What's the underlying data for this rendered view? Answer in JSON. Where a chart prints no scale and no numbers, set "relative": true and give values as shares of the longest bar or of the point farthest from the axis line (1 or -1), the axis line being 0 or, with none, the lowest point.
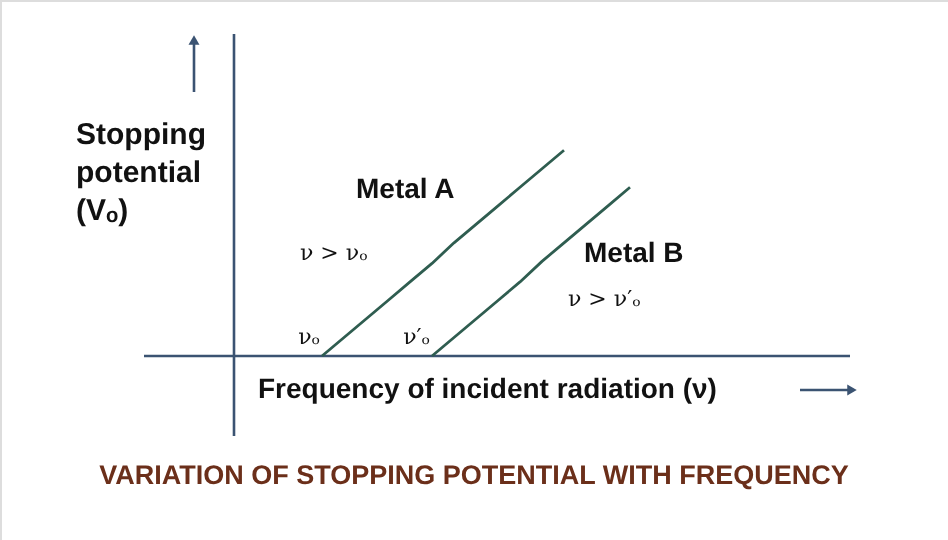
{
  "chart_data": {
    "type": "line",
    "relative": true,
    "title": "VARIATION OF STOPPING POTENTIAL WITH FREQUENCY",
    "xlabel": "Frequency of incident radiation (ν)",
    "ylabel": "Stopping potential (Vₒ)",
    "marker": "none",
    "line_style": "solid",
    "categories": [
      null,
      null,
      null,
      null,
      null,
      null,
      null,
      null,
      null,
      null,
      null,
      null,
      null,
      null,
      null
    ],
    "series": [
      {
        "name": "Metal A",
        "color": "#2f5d50",
        "values": [
          0,
          0.09,
          0.18,
          0.27,
          0.36,
          0.45,
          0.55,
          0.64,
          0.73,
          0.82,
          0.91,
          1,
          null,
          null,
          null
        ]
      },
      {
        "name": "Metal B",
        "color": "#2f5d50",
        "values": [
          null,
          null,
          null,
          null,
          null,
          0,
          0.09,
          0.18,
          0.27,
          0.36,
          0.46,
          0.55,
          0.64,
          0.73,
          0.82
        ]
      }
    ],
    "annotations": [
      "ν > νₒ",
      "ν > ν′ₒ",
      "νₒ",
      "ν′ₒ"
    ]
  }
}
